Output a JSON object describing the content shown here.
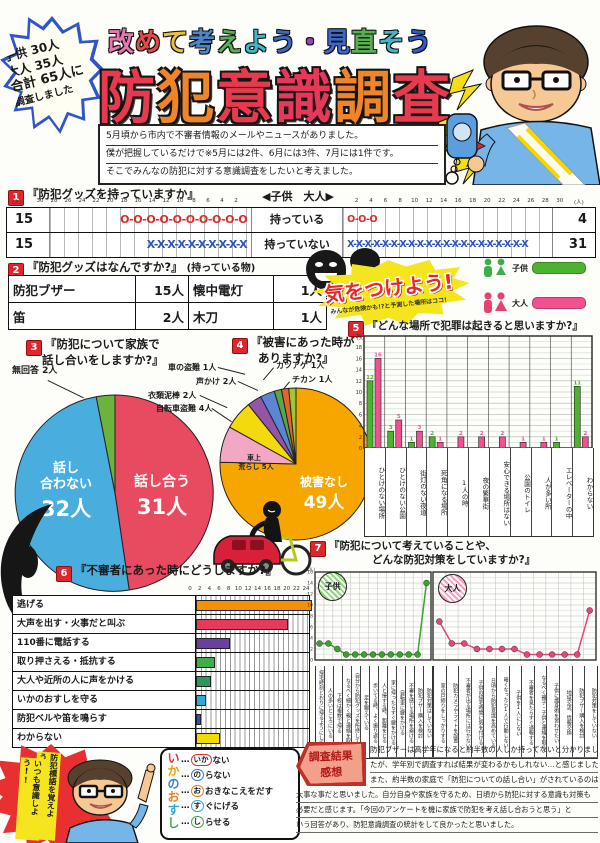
{
  "palette": {
    "child_green": "#4cb32e",
    "adult_pink": "#f2508e",
    "title_top_colors": [
      "#e877b0",
      "#e84a4a",
      "#e8c23c",
      "#4a86c8",
      "#58b054",
      "#3cb8c8",
      "#3c68c8",
      "#8a4ab8",
      "#3c68c8",
      "#58b054",
      "#3cb8c8",
      "#2f5bd0"
    ],
    "title_main_colors": [
      "#e83a4e",
      "#f08428",
      "#e83a4e",
      "#e8385a",
      "#f08428",
      "#e83a4e"
    ],
    "ikano_colors": [
      "#e03030",
      "#e8a000",
      "#3a7fd0",
      "#e8821e",
      "#2fa8dc",
      "#48a848"
    ]
  },
  "header": {
    "badge_lines": [
      "子供 30人",
      "大人 35人",
      "合計 65人に",
      "調査しました"
    ],
    "subtitle": "改めて考えよう・見直そう",
    "title": "防犯意識調査",
    "intro_lines": [
      "5月頃から市内で不審者情報のメールやニュースがありました。",
      "僕が把握しているだけで※5月には2件、6月には3件、7月には1件です。",
      "そこでみんなの防犯に対する意識調査をしたいと考えました。"
    ]
  },
  "legend": {
    "child": "子供",
    "adult": "大人"
  },
  "caution": {
    "main": "気をつけよう!",
    "sub": "みんなが危険かも!?と予測した場所はココ!"
  },
  "sections": {
    "q1": {
      "num": "1",
      "title": "『防犯グッズを持っていますか』",
      "axis_note": "◀子供　大人▶",
      "unit": "(人)"
    },
    "q2": {
      "num": "2",
      "title": "『防犯グッズはなんですか?』",
      "note": "(持っている物)"
    },
    "q3": {
      "num": "3",
      "title_line1": "『防犯について家族で",
      "title_line2": "話し合いをしますか?』",
      "outside_label": "無回答 2人"
    },
    "q4": {
      "num": "4",
      "title_line1": "『被害にあった時が",
      "title_line2": "ありますか?』"
    },
    "q5": {
      "num": "5",
      "title": "『どんな場所で犯罪は起きると思いますか?』"
    },
    "q6": {
      "num": "6",
      "title": "『不審者にあった時にどうしますか?』",
      "unit": "(人)"
    },
    "q7": {
      "num": "7",
      "title_line1": "『防犯について考えていることや、",
      "title_line2": "どんな防犯対策をしていますか?』"
    }
  },
  "slogan": {
    "burst_lines": [
      "防犯標語を覚えよう!!",
      "いつも意識しよう!!"
    ],
    "ikanoosushi": {
      "word": "いかのおすし",
      "rows": [
        {
          "key": "いか",
          "rest": "ない",
          "color": "#e03030"
        },
        {
          "key": "の",
          "rest": "らない",
          "color": "#3a7fd0"
        },
        {
          "key": "お",
          "rest": "おきなこえをだす",
          "color": "#e8821e"
        },
        {
          "key": "す",
          "rest": "ぐにげる",
          "color": "#2fa8dc"
        },
        {
          "key": "し",
          "rest": "らせる",
          "color": "#48a848"
        }
      ]
    }
  },
  "summary": {
    "banner_line1": "調査結果",
    "banner_line2": "感想",
    "lines": [
      "防犯ブザーは高学年になると約半数の人しか持ってないと分かりまし",
      "たが、学年別で調査すれば結果が変わるかもしれない…と感じました。",
      "また、約半数の家庭で「防犯についての話し合い」がされているのは",
      "大事な事だと思いました。自分自身や家族を守るため、日頃から防犯に対する意識も対策も",
      "必要だと感じます。「今回のアンケートを機に家族で防犯を考え話し合おうと思う」と",
      "いう回答があり、防犯意識調査の統計をして良かったと思いました。"
    ]
  },
  "chart_data": [
    {
      "id": "q1_goods_ownership",
      "type": "bar",
      "variant": "back_to_back_pictograph",
      "title": "防犯グッズを持っていますか",
      "unit": "人",
      "axis_max": 30,
      "axis_step": 2,
      "groups": [
        "子供",
        "大人"
      ],
      "rows": [
        {
          "label": "持っている",
          "symbol": "O",
          "color": "#d92b2b",
          "child": 15,
          "adult": 4
        },
        {
          "label": "持っていない",
          "symbol": "X",
          "color": "#2b52c0",
          "child": 15,
          "adult": 31
        }
      ]
    },
    {
      "id": "q2_goods_table",
      "type": "table",
      "title": "防犯グッズはなんですか(持っている物)",
      "rows": [
        [
          "防犯ブザー",
          "15人",
          "懐中電灯",
          "1人"
        ],
        [
          "笛",
          "2人",
          "木刀",
          "1人"
        ]
      ]
    },
    {
      "id": "q3_family_talk",
      "type": "pie",
      "title": "防犯について家族で話し合いをしますか",
      "slices": [
        {
          "label": "話し合う",
          "value": 31,
          "unit": "人",
          "color": "#e84a5f"
        },
        {
          "label": "話し合わない",
          "value": 32,
          "unit": "人",
          "color": "#49aede"
        },
        {
          "label": "無回答",
          "value": 2,
          "unit": "人",
          "color": "#6cb33e"
        }
      ]
    },
    {
      "id": "q4_victim_experience",
      "type": "pie",
      "title": "被害にあった時がありますか",
      "slices": [
        {
          "label": "被害なし",
          "value": 49,
          "unit": "人",
          "color": "#f7a600"
        },
        {
          "label": "車上荒らし",
          "value": 5,
          "unit": "人",
          "color": "#f2a8c4"
        },
        {
          "label": "自転車盗難",
          "value": 4,
          "unit": "人",
          "color": "#f5d90f"
        },
        {
          "label": "衣類泥棒",
          "value": 2,
          "unit": "人",
          "color": "#9455a8"
        },
        {
          "label": "声かけ",
          "value": 2,
          "unit": "人",
          "color": "#5c85d6"
        },
        {
          "label": "車の盗難",
          "value": 1,
          "unit": "人",
          "color": "#55aa44"
        },
        {
          "label": "カツアゲ",
          "value": 1,
          "unit": "人",
          "color": "#e8622c"
        },
        {
          "label": "チカン",
          "value": 1,
          "unit": "人",
          "color": "#9ec832"
        }
      ]
    },
    {
      "id": "q5_crime_places",
      "type": "bar",
      "title": "どんな場所で犯罪は起きると思いますか",
      "unit": "人",
      "ylim": [
        0,
        20
      ],
      "ytick": 2,
      "categories": [
        "ひとけのない場所",
        "ひとけのない公園",
        "街灯のない夜道",
        "死角になる場所",
        "1人の時",
        "夜の繁華街",
        "安心できる場所はない",
        "公園のトイレ",
        "人が多い所",
        "エレベーターの中",
        "わからない"
      ],
      "series": [
        {
          "name": "子供",
          "color": "#4cb32e",
          "values": [
            12,
            3,
            1,
            2,
            0,
            0,
            0,
            0,
            0,
            1,
            11
          ]
        },
        {
          "name": "大人",
          "color": "#f2508e",
          "values": [
            16,
            5,
            3,
            1,
            2,
            2,
            2,
            1,
            1,
            0,
            2
          ]
        }
      ]
    },
    {
      "id": "q6_response_to_stranger",
      "type": "bar",
      "variant": "horizontal",
      "title": "不審者にあった時にどうしますか",
      "unit": "人",
      "xlim": [
        0,
        24
      ],
      "xtick": 2,
      "categories": [
        "逃げる",
        "大声を出す・火事だと叫ぶ",
        "110番に電話する",
        "取り押さえる・抵抗する",
        "大人や近所の人に声をかける",
        "いかのおすしを守る",
        "防犯ベルや笛を鳴らす",
        "わからない"
      ],
      "values": [
        24,
        19,
        7,
        4,
        3,
        2,
        1,
        5
      ],
      "bar_colors": [
        "#f59000",
        "#e8395a",
        "#6a3fa0",
        "#3fae49",
        "#2e9658",
        "#2fa8dc",
        "#2255c8",
        "#f2dc00"
      ]
    },
    {
      "id": "q7_measures",
      "type": "line",
      "title": "防犯について考えていることや、どんな防犯対策をしていますか",
      "unit": "人",
      "ylim": [
        0,
        16
      ],
      "ytick": 2,
      "charts": [
        {
          "name": "子供",
          "color": "#3aa32e",
          "categories": [
            "帰宅時刻どおりに帰るようにしている",
            "人の多いところにいる",
            "下校は複数で帰る",
            "なるべく細かく親と連絡を取る",
            "自分から防犯グッズを所持している",
            "足を鍛えている",
            "歩いてる時、よく振り返る",
            "人と接する時、距離をとる",
            "家に帰ったらすぐ鍵をかける",
            "自転車に鍵をかける",
            "不審を感じる場所を避ける",
            "防犯ブザー購入を検討",
            "防犯対策はしていない"
          ],
          "values": [
            3,
            3,
            2,
            1,
            1,
            1,
            1,
            1,
            1,
            1,
            1,
            1,
            14
          ]
        },
        {
          "name": "大人",
          "color": "#e8457a",
          "categories": [
            "家の戸締りをしっかりする",
            "防犯カメラやライトを設置",
            "不審者が出る場所には行かない",
            "子供の帰宅時間に気を付ける",
            "日頃から防犯意識を高めている",
            "暗くなったら1人で行動しない",
            "子供を1人にしない",
            "不審者を見たらすぐ通報する",
            "なるべく親子・子供と連絡を取る",
            "子供に護身術を習わせたい",
            "地域交流、情報交換",
            "防犯ブザー購入を検討",
            "防犯対策をしていない"
          ],
          "values": [
            7,
            3,
            3,
            2,
            2,
            2,
            2,
            1,
            1,
            1,
            1,
            1,
            9
          ]
        }
      ]
    }
  ]
}
